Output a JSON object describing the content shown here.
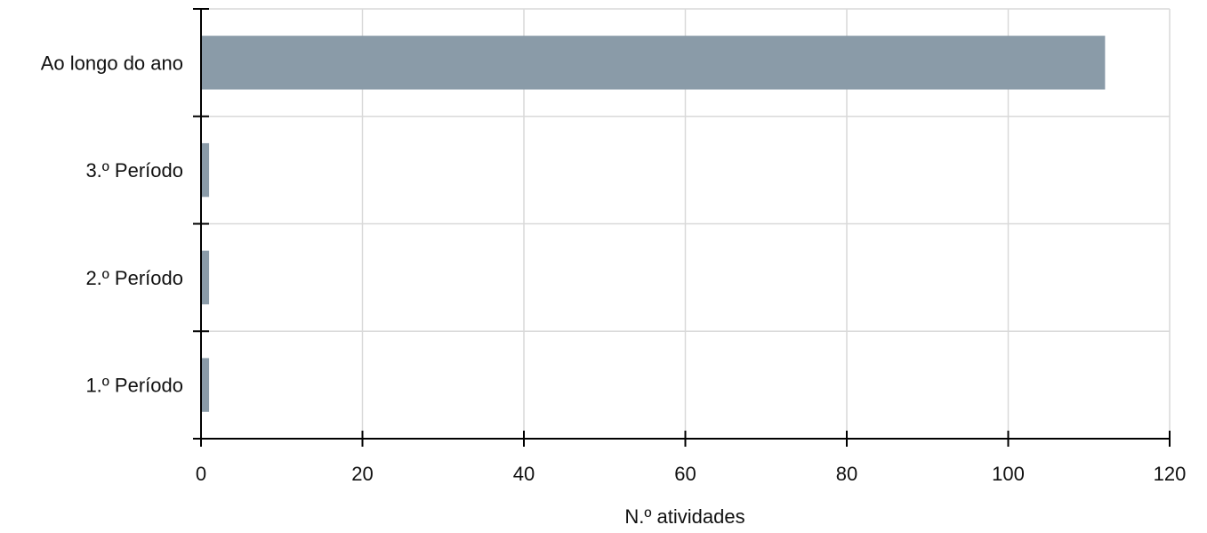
{
  "chart_data": {
    "type": "bar",
    "orientation": "horizontal",
    "categories": [
      "Ao longo do ano",
      "3.º Período",
      "2.º Período",
      "1.º Período"
    ],
    "values": [
      112,
      1,
      1,
      1
    ],
    "xlabel": "N.º atividades",
    "ylabel": "",
    "xlim": [
      0,
      120
    ],
    "xticks": [
      0,
      20,
      40,
      60,
      80,
      100,
      120
    ],
    "grid": true,
    "bar_color": "#8a9ba8"
  }
}
